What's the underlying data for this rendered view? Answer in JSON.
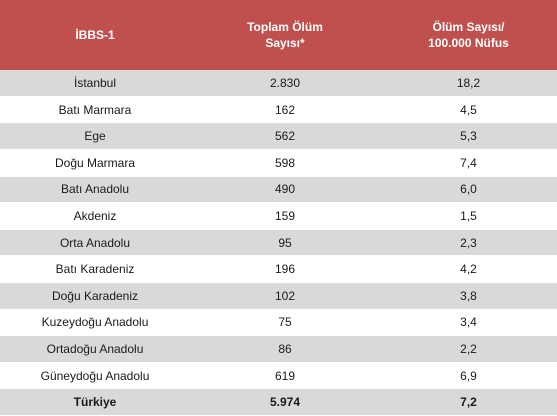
{
  "table": {
    "header": {
      "col1": "İBBS-1",
      "col2_line1": "Toplam Ölüm",
      "col2_line2": "Sayısı*",
      "col3_line1": "Ölüm Sayısı/",
      "col3_line2": "100.000 Nüfus"
    },
    "rows": [
      {
        "region": "İstanbul",
        "deaths": "2.830",
        "rate": "18,2"
      },
      {
        "region": "Batı Marmara",
        "deaths": "162",
        "rate": "4,5"
      },
      {
        "region": "Ege",
        "deaths": "562",
        "rate": "5,3"
      },
      {
        "region": "Doğu Marmara",
        "deaths": "598",
        "rate": "7,4"
      },
      {
        "region": "Batı Anadolu",
        "deaths": "490",
        "rate": "6,0"
      },
      {
        "region": "Akdeniz",
        "deaths": "159",
        "rate": "1,5"
      },
      {
        "region": "Orta Anadolu",
        "deaths": "95",
        "rate": "2,3"
      },
      {
        "region": "Batı Karadeniz",
        "deaths": "196",
        "rate": "4,2"
      },
      {
        "region": "Doğu Karadeniz",
        "deaths": "102",
        "rate": "3,8"
      },
      {
        "region": "Kuzeydoğu Anadolu",
        "deaths": "75",
        "rate": "3,4"
      },
      {
        "region": "Ortadoğu Anadolu",
        "deaths": "86",
        "rate": "2,2"
      },
      {
        "region": "Güneydoğu Anadolu",
        "deaths": "619",
        "rate": "6,9"
      }
    ],
    "total": {
      "region": "Türkiye",
      "deaths": "5.974",
      "rate": "7,2"
    },
    "colors": {
      "header_bg": "#c0504d",
      "stripe": "#d9d9d9"
    }
  }
}
